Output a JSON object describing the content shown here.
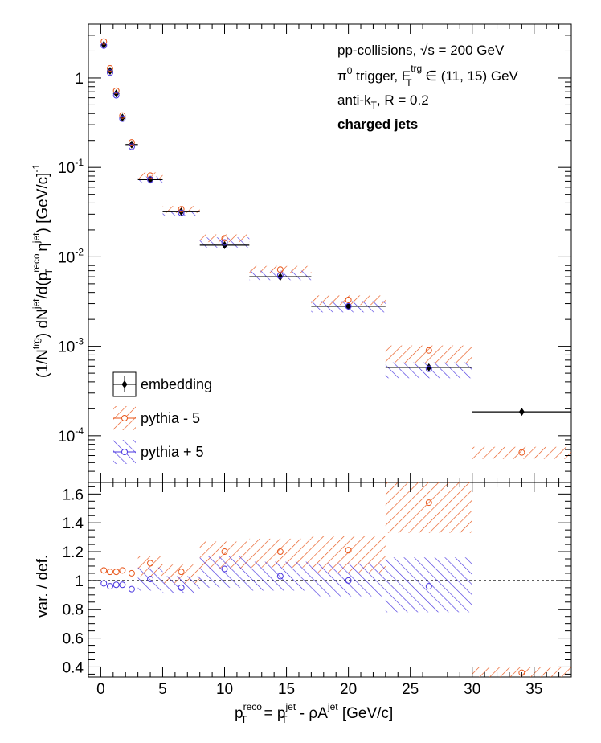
{
  "info": {
    "line1": "pp-collisions, √s = 200 GeV",
    "line2_a": "π",
    "line2_b": "0",
    "line2_c": " trigger, E",
    "line2_d": "trg",
    "line2_e": "T",
    "line2_f": " ∈ (11, 15) GeV",
    "line3_a": "anti-k",
    "line3_b": "T",
    "line3_c": ", R = 0.2",
    "line4": "charged jets"
  },
  "axes": {
    "top_ylabel": "(1/N^trg) dN^jet/d(p_T^reco η^jet) [GeV/c]^-1",
    "bottom_ylabel": "var. / def.",
    "xlabel": "p_T^reco = p_T^jet - ρA^jet [GeV/c]"
  },
  "chart_data": [
    {
      "type": "scatter",
      "panel": "spectrum",
      "yscale": "log",
      "xlim": [
        -1,
        38
      ],
      "ylim": [
        3e-05,
        4
      ],
      "x_ticks": [
        0,
        5,
        10,
        15,
        20,
        25,
        30,
        35
      ],
      "y_tick_labels": [
        "10^-4",
        "10^-3",
        "10^-2",
        "10^-1",
        "1"
      ],
      "legend": {
        "position": "bottom-left",
        "entries": [
          "embedding",
          "pythia - 5",
          "pythia + 5"
        ]
      },
      "bins": [
        {
          "lo": 0,
          "hi": 0.5,
          "x": 0.25
        },
        {
          "lo": 0.5,
          "hi": 1,
          "x": 0.75
        },
        {
          "lo": 1,
          "hi": 1.5,
          "x": 1.25
        },
        {
          "lo": 1.5,
          "hi": 2,
          "x": 1.75
        },
        {
          "lo": 2,
          "hi": 3,
          "x": 2.5
        },
        {
          "lo": 3,
          "hi": 5,
          "x": 4
        },
        {
          "lo": 5,
          "hi": 8,
          "x": 6.5
        },
        {
          "lo": 8,
          "hi": 12,
          "x": 10
        },
        {
          "lo": 12,
          "hi": 17,
          "x": 14.5
        },
        {
          "lo": 17,
          "hi": 23,
          "x": 20
        },
        {
          "lo": 23,
          "hi": 30,
          "x": 26.5
        },
        {
          "lo": 30,
          "hi": 38,
          "x": 34
        }
      ],
      "series": [
        {
          "name": "embedding",
          "color": "#000000",
          "marker": "diamond",
          "values": [
            2.35,
            1.2,
            0.67,
            0.36,
            0.18,
            0.073,
            0.032,
            0.0135,
            0.006,
            0.0028,
            0.00058,
            0.000185
          ],
          "band_lo": [
            null,
            null,
            null,
            null,
            null,
            0.0715,
            0.031,
            0.0132,
            0.0058,
            0.0027,
            0.00049,
            null
          ],
          "band_hi": [
            null,
            null,
            null,
            null,
            null,
            0.0745,
            0.033,
            0.0138,
            0.0062,
            0.0029,
            0.00068,
            null
          ]
        },
        {
          "name": "pythia - 5",
          "color": "#e8561a",
          "marker": "open-circle",
          "values": [
            2.55,
            1.28,
            0.72,
            0.38,
            0.19,
            0.081,
            0.034,
            0.0161,
            0.0072,
            0.0033,
            0.0009,
            6.5e-05
          ],
          "band_lo": [
            null,
            null,
            null,
            null,
            null,
            0.075,
            0.031,
            0.0146,
            0.0066,
            0.0029,
            0.00065,
            5.5e-05
          ],
          "band_hi": [
            null,
            null,
            null,
            null,
            null,
            0.088,
            0.037,
            0.0178,
            0.0079,
            0.0037,
            0.00102,
            7.5e-05
          ]
        },
        {
          "name": "pythia + 5",
          "color": "#4a36e0",
          "marker": "open-circle",
          "values": [
            2.3,
            1.15,
            0.64,
            0.35,
            0.17,
            0.073,
            0.031,
            0.0145,
            0.0062,
            0.0028,
            0.00056,
            null
          ],
          "band_lo": [
            null,
            null,
            null,
            null,
            null,
            0.068,
            0.029,
            0.0127,
            0.0055,
            0.0024,
            0.00044,
            null
          ],
          "band_hi": [
            null,
            null,
            null,
            null,
            null,
            0.079,
            0.033,
            0.0165,
            0.007,
            0.0032,
            0.00066,
            null
          ]
        }
      ]
    },
    {
      "type": "scatter",
      "panel": "ratio",
      "xlim": [
        -1,
        38
      ],
      "ylim": [
        0.33,
        1.68
      ],
      "y_ticks": [
        0.4,
        0.6,
        0.8,
        1,
        1.2,
        1.4,
        1.6
      ],
      "x_ticks": [
        0,
        5,
        10,
        15,
        20,
        25,
        30,
        35
      ],
      "reference_line": 1,
      "series": [
        {
          "name": "pythia - 5",
          "color": "#e8561a",
          "values": [
            1.07,
            1.06,
            1.06,
            1.07,
            1.05,
            1.12,
            1.06,
            1.2,
            1.2,
            1.21,
            1.54,
            0.36
          ],
          "band_lo": [
            null,
            null,
            null,
            null,
            null,
            1.03,
            0.98,
            1.08,
            1.09,
            1.05,
            1.33,
            0.3
          ],
          "band_hi": [
            null,
            null,
            null,
            null,
            null,
            1.17,
            1.11,
            1.27,
            1.29,
            1.31,
            1.7,
            0.4
          ]
        },
        {
          "name": "pythia + 5",
          "color": "#4a36e0",
          "values": [
            0.98,
            0.96,
            0.97,
            0.97,
            0.94,
            1.01,
            0.95,
            1.08,
            1.03,
            1.0,
            0.96,
            null
          ],
          "band_lo": [
            null,
            null,
            null,
            null,
            null,
            0.93,
            0.91,
            0.95,
            0.93,
            0.89,
            0.78,
            null
          ],
          "band_hi": [
            null,
            null,
            null,
            null,
            null,
            1.09,
            1.03,
            1.17,
            1.13,
            1.12,
            1.16,
            null
          ]
        }
      ]
    }
  ]
}
